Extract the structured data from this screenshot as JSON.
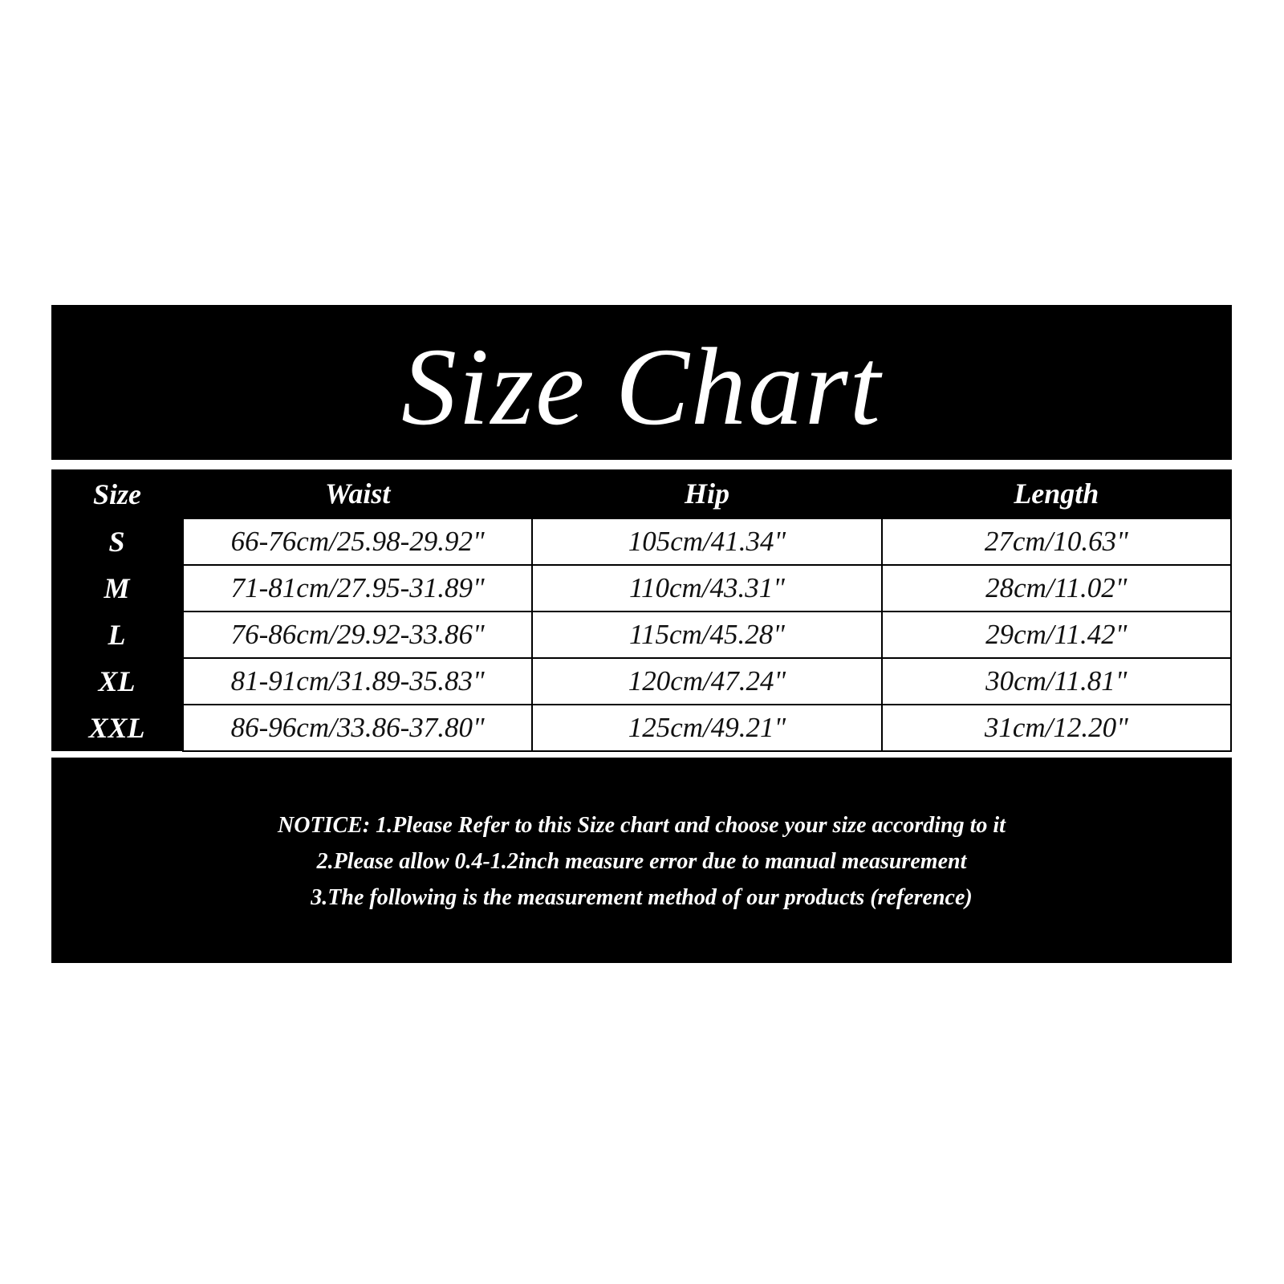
{
  "title": "Size Chart",
  "table": {
    "headers": [
      "Size",
      "Waist",
      "Hip",
      "Length"
    ],
    "rows": [
      [
        "S",
        "66-76cm/25.98-29.92\"",
        "105cm/41.34\"",
        "27cm/10.63\""
      ],
      [
        "M",
        "71-81cm/27.95-31.89\"",
        "110cm/43.31\"",
        "28cm/11.02\""
      ],
      [
        "L",
        "76-86cm/29.92-33.86\"",
        "115cm/45.28\"",
        "29cm/11.42\""
      ],
      [
        "XL",
        "81-91cm/31.89-35.83\"",
        "120cm/47.24\"",
        "30cm/11.81\""
      ],
      [
        "XXL",
        "86-96cm/33.86-37.80\"",
        "125cm/49.21\"",
        "31cm/12.20\""
      ]
    ]
  },
  "notice": [
    "NOTICE: 1.Please Refer to this Size chart and choose your size according to it",
    "2.Please allow 0.4-1.2inch measure error due to manual measurement",
    "3.The following is the measurement method of our products (reference)"
  ],
  "colors": {
    "background": "#000000",
    "text": "#ffffff",
    "cell": "#ffffff"
  }
}
